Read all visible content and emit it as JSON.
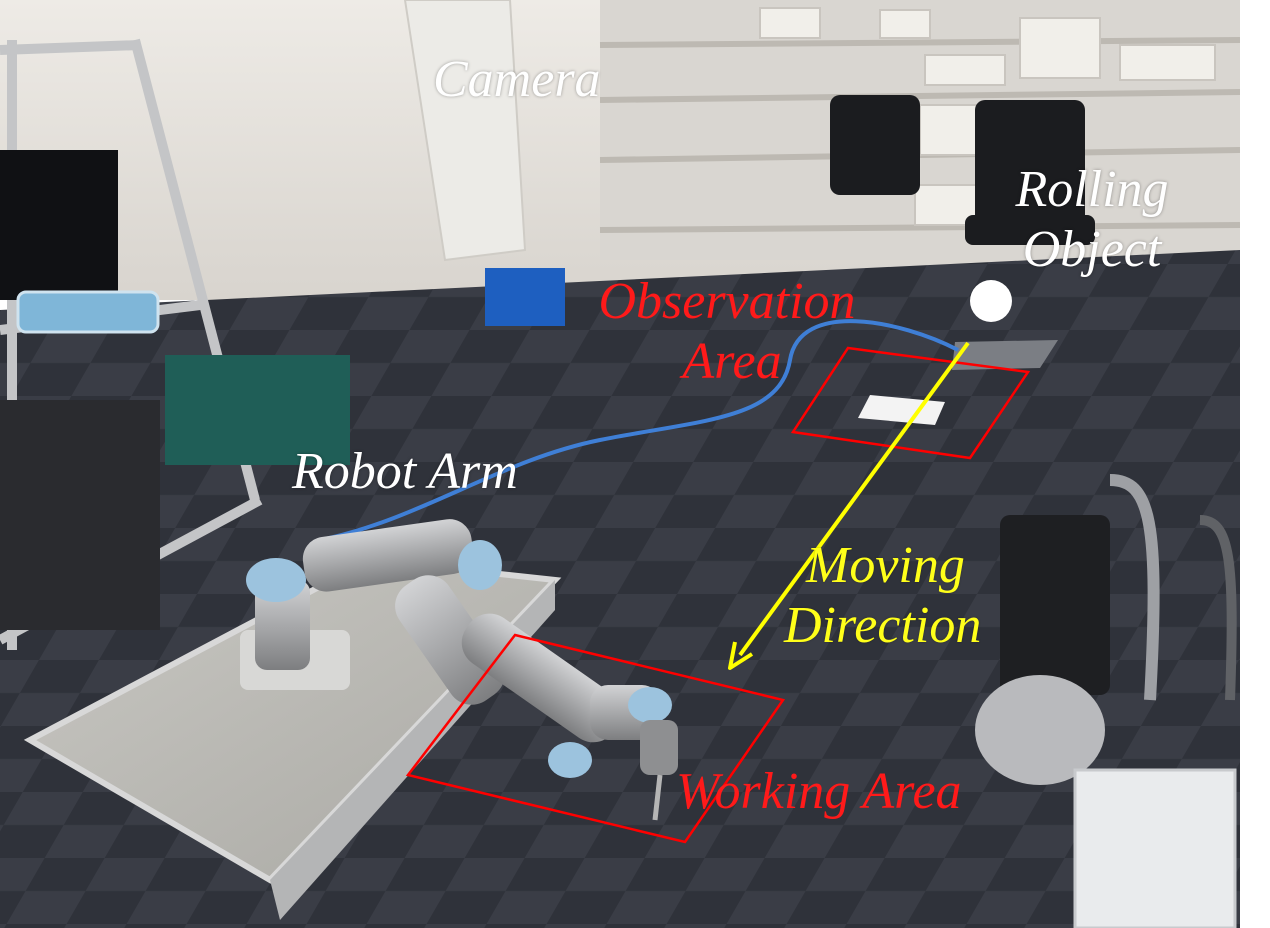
{
  "labels": {
    "camera": "Camera",
    "rolling_object_line1": "Rolling",
    "rolling_object_line2": "Object",
    "observation_area_line1": "Observation",
    "observation_area_line2": "Area",
    "robot_arm": "Robot Arm",
    "moving_direction_line1": "Moving",
    "moving_direction_line2": "Direction",
    "working_area": "Working Area"
  },
  "colors": {
    "label_white": "#ffffff",
    "label_red": "#ff1a1a",
    "label_yellow": "#ffff1a",
    "area_outline": "#ff0000",
    "direction_arrow": "#ffff00",
    "rolling_object": "#ffffff",
    "carpet_dark": "#2b2e36",
    "carpet_light": "#3a3e48",
    "wall": "#e6e3de",
    "robot_arm": "#a8a9ab",
    "robot_joint_cap": "#9cc3de"
  }
}
